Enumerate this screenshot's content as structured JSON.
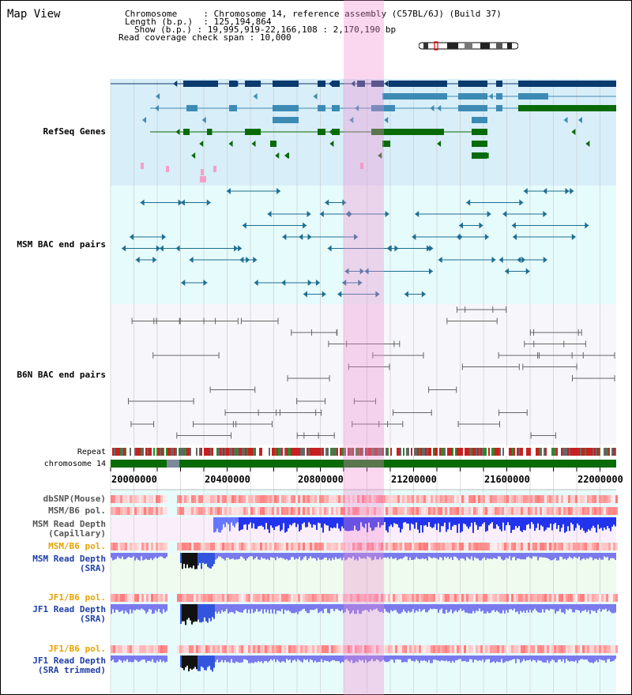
{
  "title": "Map View",
  "header": {
    "chromosome_key": "Chromosome",
    "chromosome_val": "Chromosome 14, reference assembly (C57BL/6J) (Build 37)",
    "length_key": "Length (b.p.)",
    "length_val": "125,194,864",
    "show_key": "Show (b.p.)",
    "show_val": "19,995,919-22,166,108 : 2,170,190 bp",
    "coverage_key": "Read coverage check span",
    "coverage_val": "10,000",
    "sep": " : "
  },
  "tracks": {
    "refseq": "RefSeq Genes",
    "msm_bac": "MSM BAC end pairs",
    "b6n_bac": "B6N BAC end pairs",
    "repeat": "Repeat",
    "chromosome": "chromosome 14",
    "dbsnp": "dbSNP(Mouse)",
    "msm_b6_pol": "MSM/B6 pol.",
    "msm_read_depth_cap_1": "MSM Read Depth",
    "msm_read_depth_cap_2": "(Capillary)",
    "msm_b6_pol_2": "MSM/B6 pol.",
    "msm_read_depth_sra_1": "MSM Read Depth",
    "msm_read_depth_sra_2": "(SRA)",
    "jf1_b6_pol": "JF1/B6 pol.",
    "jf1_read_depth_sra_1": "JF1 Read Depth",
    "jf1_read_depth_sra_2": "(SRA)",
    "jf1_b6_pol_2": "JF1/B6 pol.",
    "jf1_read_depth_trim_1": "JF1 Read Depth",
    "jf1_read_depth_trim_2": "(SRA trimmed)"
  },
  "axis": {
    "ticks": [
      "20000000",
      "20400000",
      "20800000",
      "21200000",
      "21600000",
      "22000000"
    ]
  },
  "colors": {
    "refseq_bg": "#d8eef8",
    "msm_bac_bg": "#e6fbfb",
    "b6n_bg": "#f6f6fb",
    "highlight": "#f08cd2",
    "refseq_dark": "#0a3a6e",
    "refseq_mid": "#3d8bb5",
    "refseq_green": "#086b08",
    "msm_bac": "#1d6e93",
    "b6n_bac": "#666666",
    "label_blue": "#1e3fa8",
    "label_orange": "#e8a200",
    "chrom_green": "#086b08"
  }
}
